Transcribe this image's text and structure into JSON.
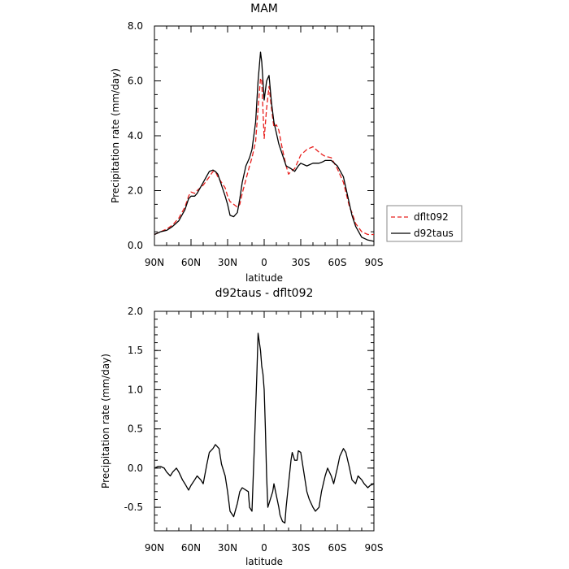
{
  "chart_data": [
    {
      "type": "line",
      "title": "MAM",
      "xlabel": "latitude",
      "ylabel": "Precipitation rate (mm/day)",
      "xlim": [
        90,
        -90
      ],
      "ylim": [
        0,
        8
      ],
      "xticks": [
        90,
        60,
        30,
        0,
        -30,
        -60,
        -90
      ],
      "xtick_labels": [
        "90N",
        "60N",
        "30N",
        "0",
        "30S",
        "60S",
        "90S"
      ],
      "yticks": [
        0,
        2,
        4,
        6,
        8
      ],
      "ytick_labels": [
        "0.0",
        "2.0",
        "4.0",
        "6.0",
        "8.0"
      ],
      "grid": false,
      "legend_position": "right",
      "series": [
        {
          "name": "dflt092",
          "color": "#e8201e",
          "dash": "dashed",
          "x": [
            90,
            85,
            80,
            75,
            70,
            65,
            62,
            60,
            57,
            55,
            50,
            45,
            42,
            40,
            38,
            35,
            32,
            30,
            28,
            25,
            22,
            20,
            18,
            15,
            12,
            10,
            7,
            5,
            3,
            2,
            0,
            -2,
            -4,
            -6,
            -8,
            -10,
            -12,
            -15,
            -18,
            -20,
            -22,
            -25,
            -28,
            -30,
            -35,
            -40,
            -45,
            -48,
            -50,
            -55,
            -60,
            -65,
            -70,
            -72,
            -75,
            -80,
            -85,
            -90
          ],
          "y": [
            0.4,
            0.5,
            0.6,
            0.75,
            1.0,
            1.4,
            1.8,
            1.95,
            1.9,
            2.0,
            2.2,
            2.5,
            2.7,
            2.7,
            2.5,
            2.3,
            2.1,
            1.8,
            1.6,
            1.5,
            1.4,
            1.5,
            1.9,
            2.4,
            2.9,
            3.2,
            3.8,
            5.0,
            6.1,
            6.0,
            3.9,
            5.0,
            5.8,
            5.0,
            4.3,
            4.4,
            4.2,
            3.5,
            2.9,
            2.6,
            2.7,
            2.8,
            3.1,
            3.3,
            3.5,
            3.6,
            3.4,
            3.3,
            3.25,
            3.2,
            2.8,
            2.3,
            1.4,
            1.2,
            0.8,
            0.5,
            0.4,
            0.4
          ]
        },
        {
          "name": "d92taus",
          "color": "#000000",
          "dash": "solid",
          "x": [
            90,
            85,
            80,
            75,
            70,
            65,
            62,
            60,
            57,
            55,
            50,
            45,
            42,
            40,
            38,
            35,
            32,
            30,
            28,
            25,
            22,
            20,
            18,
            15,
            12,
            10,
            7,
            5,
            3,
            2,
            0,
            -2,
            -4,
            -6,
            -8,
            -10,
            -12,
            -15,
            -18,
            -20,
            -22,
            -25,
            -28,
            -30,
            -35,
            -40,
            -45,
            -48,
            -50,
            -55,
            -60,
            -65,
            -70,
            -72,
            -75,
            -80,
            -85,
            -90
          ],
          "y": [
            0.4,
            0.5,
            0.55,
            0.7,
            0.9,
            1.3,
            1.7,
            1.8,
            1.8,
            1.9,
            2.3,
            2.7,
            2.75,
            2.7,
            2.6,
            2.2,
            1.8,
            1.5,
            1.1,
            1.05,
            1.2,
            1.7,
            2.3,
            2.9,
            3.2,
            3.5,
            4.5,
            6.0,
            7.05,
            6.7,
            5.3,
            6.0,
            6.2,
            5.2,
            4.5,
            4.1,
            3.7,
            3.3,
            2.9,
            2.85,
            2.8,
            2.7,
            2.9,
            3.0,
            2.9,
            3.0,
            3.0,
            3.05,
            3.1,
            3.1,
            2.9,
            2.5,
            1.5,
            1.1,
            0.7,
            0.3,
            0.2,
            0.15
          ]
        }
      ]
    },
    {
      "type": "line",
      "title": "d92taus - dflt092",
      "xlabel": "latitude",
      "ylabel": "Precipitation rate (mm/day)",
      "xlim": [
        90,
        -90
      ],
      "ylim": [
        -0.8,
        2.0
      ],
      "xticks": [
        90,
        60,
        30,
        0,
        -30,
        -60,
        -90
      ],
      "xtick_labels": [
        "90N",
        "60N",
        "30N",
        "0",
        "30S",
        "60S",
        "90S"
      ],
      "yticks": [
        -0.5,
        0,
        0.5,
        1.0,
        1.5,
        2.0
      ],
      "ytick_labels": [
        "-0.5",
        "0.0",
        "0.5",
        "1.0",
        "1.5",
        "2.0"
      ],
      "grid": false,
      "series": [
        {
          "color": "#000000",
          "dash": "solid",
          "x": [
            90,
            87,
            85,
            82,
            80,
            77,
            75,
            72,
            70,
            67,
            65,
            62,
            60,
            57,
            55,
            52,
            50,
            47,
            45,
            42,
            40,
            37,
            35,
            32,
            30,
            28,
            25,
            22,
            20,
            18,
            15,
            13,
            12,
            10,
            8,
            6,
            5,
            3,
            2,
            1,
            0,
            -1,
            -2,
            -3,
            -5,
            -7,
            -8,
            -10,
            -12,
            -13,
            -15,
            -17,
            -18,
            -20,
            -22,
            -23,
            -25,
            -27,
            -28,
            -30,
            -32,
            -33,
            -35,
            -37,
            -40,
            -42,
            -45,
            -47,
            -50,
            -52,
            -55,
            -57,
            -60,
            -62,
            -65,
            -67,
            -70,
            -72,
            -75,
            -77,
            -80,
            -82,
            -85,
            -87,
            -90
          ],
          "y": [
            0.0,
            0.02,
            0.02,
            0.0,
            -0.05,
            -0.1,
            -0.05,
            -0.0,
            -0.05,
            -0.15,
            -0.2,
            -0.28,
            -0.22,
            -0.15,
            -0.1,
            -0.15,
            -0.2,
            0.05,
            0.2,
            0.25,
            0.3,
            0.25,
            0.05,
            -0.1,
            -0.3,
            -0.55,
            -0.62,
            -0.45,
            -0.3,
            -0.25,
            -0.28,
            -0.3,
            -0.5,
            -0.55,
            0.3,
            1.2,
            1.72,
            1.5,
            1.3,
            1.2,
            1.0,
            0.5,
            -0.1,
            -0.5,
            -0.4,
            -0.3,
            -0.2,
            -0.35,
            -0.5,
            -0.6,
            -0.68,
            -0.7,
            -0.5,
            -0.2,
            0.1,
            0.2,
            0.1,
            0.1,
            0.22,
            0.2,
            0.0,
            -0.1,
            -0.3,
            -0.4,
            -0.5,
            -0.55,
            -0.5,
            -0.3,
            -0.1,
            0.0,
            -0.1,
            -0.2,
            0.0,
            0.15,
            0.25,
            0.2,
            0.0,
            -0.15,
            -0.2,
            -0.1,
            -0.15,
            -0.2,
            -0.25,
            -0.22,
            -0.2
          ]
        }
      ]
    }
  ]
}
